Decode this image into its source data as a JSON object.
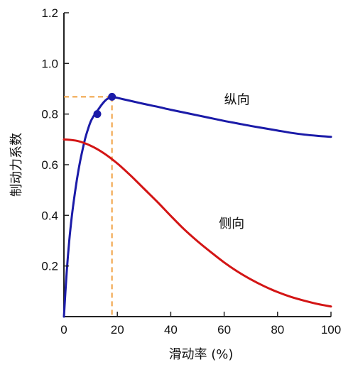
{
  "chart_data": {
    "type": "line",
    "title": "",
    "xlabel": "滑动率 (%)",
    "ylabel": "制动力系数",
    "xlim": [
      0,
      100
    ],
    "ylim": [
      0,
      1.2
    ],
    "x_ticks": [
      {
        "value": 0,
        "label": "0"
      },
      {
        "value": 20,
        "label": "20"
      },
      {
        "value": 40,
        "label": "40"
      },
      {
        "value": 60,
        "label": "60"
      },
      {
        "value": 80,
        "label": "80"
      },
      {
        "value": 100,
        "label": "100"
      }
    ],
    "y_ticks": [
      {
        "value": 0.2,
        "label": "0.2"
      },
      {
        "value": 0.4,
        "label": "0.4"
      },
      {
        "value": 0.6,
        "label": "0.6"
      },
      {
        "value": 0.8,
        "label": "0.8"
      },
      {
        "value": 1.0,
        "label": "1.0"
      },
      {
        "value": 1.2,
        "label": "1.2"
      }
    ],
    "grid": false,
    "series": [
      {
        "name": "纵向",
        "color": "#1b1ba8",
        "x": [
          0,
          1,
          2,
          3,
          4,
          5,
          6,
          7,
          8,
          9,
          10,
          11,
          12,
          13,
          14,
          15,
          16,
          17,
          18,
          20,
          22,
          25,
          30,
          35,
          40,
          45,
          50,
          55,
          60,
          65,
          70,
          75,
          80,
          85,
          90,
          95,
          100
        ],
        "values": [
          0,
          0.17,
          0.3,
          0.4,
          0.48,
          0.55,
          0.61,
          0.66,
          0.705,
          0.74,
          0.77,
          0.79,
          0.805,
          0.82,
          0.835,
          0.848,
          0.858,
          0.864,
          0.868,
          0.864,
          0.859,
          0.852,
          0.84,
          0.829,
          0.817,
          0.806,
          0.795,
          0.784,
          0.773,
          0.763,
          0.753,
          0.744,
          0.735,
          0.726,
          0.719,
          0.714,
          0.71
        ]
      },
      {
        "name": "侧向",
        "color": "#d31515",
        "x": [
          0,
          5,
          10,
          15,
          20,
          25,
          30,
          35,
          40,
          45,
          50,
          55,
          60,
          65,
          70,
          75,
          80,
          85,
          90,
          95,
          100
        ],
        "values": [
          0.7,
          0.694,
          0.675,
          0.645,
          0.605,
          0.557,
          0.505,
          0.453,
          0.398,
          0.345,
          0.298,
          0.255,
          0.214,
          0.178,
          0.147,
          0.12,
          0.097,
          0.078,
          0.063,
          0.05,
          0.04
        ]
      }
    ],
    "markers": [
      {
        "series": "纵向",
        "x": 12.5,
        "y": 0.8,
        "color": "#1b1ba8"
      },
      {
        "series": "纵向",
        "x": 18,
        "y": 0.868,
        "color": "#1b1ba8"
      }
    ],
    "reference_lines": {
      "color": "#f0a040",
      "style": "dashed",
      "x": 18,
      "y": 0.868
    },
    "series_labels": [
      {
        "text": "纵向",
        "x": 60,
        "y": 0.84
      },
      {
        "text": "侧向",
        "x": 58,
        "y": 0.35
      }
    ]
  }
}
